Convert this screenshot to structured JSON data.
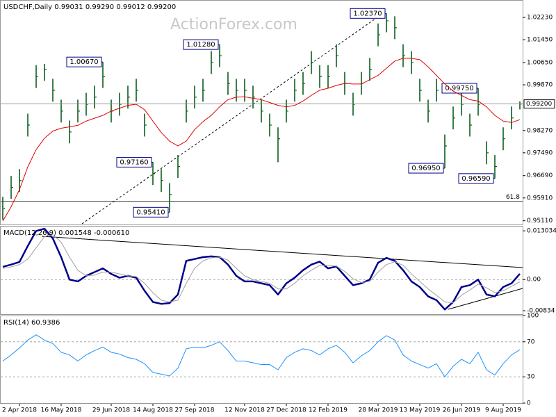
{
  "watermark": "ActionForex.com",
  "chart_data": [
    {
      "type": "ohlc",
      "title": "USDCHF,Daily 0.99031 0.99290 0.99012 0.99200",
      "categories": [
        null,
        null,
        "2 Apr 2018",
        null,
        null,
        null,
        null,
        "16 May 2018",
        null,
        null,
        null,
        null,
        null,
        "29 Jun 2018",
        null,
        null,
        null,
        null,
        "14 Aug 2018",
        null,
        null,
        null,
        null,
        "27 Sep 2018",
        null,
        null,
        null,
        null,
        null,
        "12 Nov 2018",
        null,
        null,
        null,
        null,
        "27 Dec 2018",
        null,
        null,
        null,
        null,
        "12 Feb 2019",
        null,
        null,
        null,
        null,
        null,
        "28 Mar 2019",
        null,
        null,
        null,
        null,
        "13 May 2019",
        null,
        null,
        null,
        null,
        "26 Jun 2019",
        null,
        null,
        null,
        null,
        "9 Aug 2019",
        null,
        null
      ],
      "color": "#0b5d1e",
      "high": [
        0.9595,
        0.9668,
        0.9692,
        0.9886,
        1.0056,
        1.006,
        1.0008,
        0.9935,
        0.9862,
        0.9935,
        0.9959,
        0.9984,
        1.0067,
        0.9935,
        0.9959,
        0.9984,
        1.0008,
        0.9886,
        0.9716,
        0.9692,
        0.9643,
        0.9741,
        0.9935,
        0.9984,
        1.0008,
        1.0105,
        1.0128,
        1.0032,
        1.0008,
        1.0008,
        0.9984,
        0.9935,
        0.9886,
        0.9838,
        0.9935,
        1.0008,
        1.0032,
        1.0105,
        1.0056,
        1.0056,
        1.0129,
        1.0032,
        0.9959,
        1.0032,
        1.0081,
        1.0202,
        1.0237,
        1.0227,
        1.0129,
        1.0105,
        1.0008,
        0.9935,
        1.0008,
        0.9813,
        0.9911,
        0.9959,
        0.9886,
        0.9975,
        0.9789,
        0.9741,
        0.9838,
        0.9911,
        0.9929
      ],
      "low": [
        0.9515,
        0.9588,
        0.9612,
        0.9806,
        0.9976,
        1.0001,
        0.9928,
        0.9855,
        0.9782,
        0.9855,
        0.9879,
        0.9904,
        0.9976,
        0.9855,
        0.9879,
        0.9904,
        0.9928,
        0.9806,
        0.9636,
        0.9612,
        0.9541,
        0.9661,
        0.9855,
        0.9904,
        0.9928,
        1.0025,
        1.0049,
        0.9952,
        0.9928,
        0.9928,
        0.9904,
        0.9855,
        0.9806,
        0.9716,
        0.9855,
        0.9928,
        0.9952,
        1.0025,
        0.9976,
        0.9976,
        1.0049,
        0.9952,
        0.9879,
        0.9952,
        1.0001,
        1.0122,
        1.0171,
        1.0147,
        1.0049,
        1.0025,
        0.9928,
        0.9855,
        0.9928,
        0.9695,
        0.9831,
        0.9879,
        0.9806,
        0.9879,
        0.9709,
        0.9659,
        0.9758,
        0.9831,
        0.9901
      ],
      "close": [
        0.9555,
        0.9628,
        0.9652,
        0.9846,
        1.0016,
        1.0041,
        0.9968,
        0.9895,
        0.9822,
        0.9895,
        0.9919,
        0.9944,
        1.0016,
        0.9895,
        0.9919,
        0.9944,
        0.9968,
        0.9846,
        0.9676,
        0.9652,
        0.9603,
        0.9701,
        0.9895,
        0.9944,
        0.9968,
        1.0065,
        1.0089,
        0.9992,
        0.9968,
        0.9968,
        0.9944,
        0.9895,
        0.9846,
        0.9798,
        0.9895,
        0.9968,
        0.9992,
        1.0065,
        1.0016,
        1.0016,
        1.0089,
        0.9992,
        0.9919,
        0.9992,
        1.0041,
        1.0162,
        1.0211,
        1.0187,
        1.0089,
        1.0065,
        0.9968,
        0.9895,
        0.9968,
        0.9773,
        0.9871,
        0.9919,
        0.9846,
        0.9919,
        0.9749,
        0.9701,
        0.9798,
        0.9871,
        0.992
      ],
      "series": [
        {
          "color": "#e00000",
          "values": [
            0.951,
            0.956,
            0.962,
            0.97,
            0.976,
            0.98,
            0.9825,
            0.9835,
            0.984,
            0.9845,
            0.986,
            0.987,
            0.988,
            0.9895,
            0.9905,
            0.9915,
            0.9919,
            0.99,
            0.986,
            0.982,
            0.979,
            0.9773,
            0.979,
            0.983,
            0.9858,
            0.988,
            0.991,
            0.9935,
            0.9944,
            0.9945,
            0.994,
            0.9935,
            0.9925,
            0.9915,
            0.991,
            0.9915,
            0.993,
            0.995,
            0.9968,
            0.9975,
            0.9985,
            0.9992,
            0.999,
            0.999,
            1.0005,
            1.002,
            1.0045,
            1.007,
            1.008,
            1.008,
            1.0075,
            1.005,
            1.002,
            0.999,
            0.9965,
            0.995,
            0.9935,
            0.993,
            0.991,
            0.988,
            0.986,
            0.9855,
            0.9865
          ]
        }
      ],
      "ylim": [
        0.9498,
        1.0284
      ],
      "yticks": [
        {
          "value": 0.9511,
          "label": "0.95110"
        },
        {
          "value": 0.9591,
          "label": "0.95910"
        },
        {
          "value": 0.9669,
          "label": "0.96690"
        },
        {
          "value": 0.9749,
          "label": "0.97490"
        },
        {
          "value": 0.9827,
          "label": "0.98270"
        },
        {
          "value": 0.9987,
          "label": "0.99870"
        },
        {
          "value": 1.0065,
          "label": "1.00650"
        },
        {
          "value": 1.0145,
          "label": "1.01450"
        },
        {
          "value": 1.0223,
          "label": "1.02230"
        }
      ],
      "current": {
        "value": 0.992,
        "label": "0.99200"
      },
      "levels": [
        {
          "value": 0.9579,
          "label": "61.8"
        }
      ],
      "annotations": [
        {
          "value": 1.0067,
          "label": "1.00670"
        },
        {
          "value": 1.0128,
          "label": "1.01280"
        },
        {
          "value": 0.9541,
          "label": "0.95410"
        },
        {
          "value": 0.9716,
          "label": "0.97160"
        },
        {
          "value": 1.0237,
          "label": "1.02370"
        },
        {
          "value": 0.9695,
          "label": "0.96950"
        },
        {
          "value": 0.9975,
          "label": "0.99750"
        },
        {
          "value": 0.9659,
          "label": "0.96590"
        }
      ]
    },
    {
      "type": "line",
      "title": "MACD(12,26,9) 0.001548 -0.000610",
      "series": [
        {
          "color": "#00008b",
          "line_width": 2.5,
          "values": [
            0.0034,
            0.004,
            0.0047,
            0.009,
            0.013,
            0.0136,
            0.011,
            0.006,
            0.0,
            -0.0005,
            0.001,
            0.002,
            0.003,
            0.0015,
            0.0005,
            0.001,
            0.0005,
            -0.003,
            -0.006,
            -0.0065,
            -0.0063,
            -0.004,
            0.005,
            0.0055,
            0.006,
            0.0062,
            0.006,
            0.004,
            0.001,
            -0.0005,
            -0.0005,
            -0.001,
            -0.0015,
            -0.004,
            -0.001,
            0.0005,
            0.0025,
            0.004,
            0.0048,
            0.003,
            0.0035,
            0.001,
            -0.0015,
            -0.001,
            0.0,
            0.0045,
            0.0058,
            0.005,
            0.0025,
            -0.0005,
            -0.002,
            -0.0045,
            -0.0055,
            -0.008,
            -0.006,
            -0.002,
            -0.0015,
            0.0,
            -0.004,
            -0.0045,
            -0.002,
            -0.001,
            0.001548
          ]
        },
        {
          "color": "#a0a0a0",
          "line_width": 1,
          "values": [
            0.003,
            0.0034,
            0.004,
            0.0055,
            0.0085,
            0.0115,
            0.012,
            0.01,
            0.006,
            0.0025,
            0.001,
            0.0012,
            0.002,
            0.002,
            0.0015,
            0.001,
            0.0008,
            -0.001,
            -0.0035,
            -0.0055,
            -0.006,
            -0.0055,
            -0.001,
            0.003,
            0.005,
            0.0058,
            0.006,
            0.0052,
            0.003,
            0.001,
            0.0,
            -0.0005,
            -0.001,
            -0.0025,
            -0.0025,
            -0.001,
            0.001,
            0.0025,
            0.0038,
            0.0038,
            0.0036,
            0.0022,
            0.0002,
            -0.0008,
            -0.0005,
            0.002,
            0.004,
            0.0048,
            0.0038,
            0.0015,
            -0.0005,
            -0.0025,
            -0.0042,
            -0.006,
            -0.0062,
            -0.0042,
            -0.0028,
            -0.0012,
            -0.0022,
            -0.0035,
            -0.003,
            -0.0018,
            -0.00061
          ]
        }
      ],
      "ylim": [
        -0.00925,
        0.01436
      ],
      "yticks": [
        0.013034,
        {
          "value": 0,
          "label": "0.00"
        },
        -0.00834
      ],
      "levels": [
        {
          "value": 0
        }
      ]
    },
    {
      "type": "line",
      "title": "RSI(14) 60.9386",
      "series": [
        {
          "color": "#1e90ff",
          "line_width": 1,
          "values": [
            48,
            55,
            63,
            72,
            78,
            72,
            68,
            58,
            55,
            48,
            55,
            60,
            64,
            58,
            56,
            52,
            50,
            45,
            35,
            33,
            31,
            40,
            62,
            64,
            63,
            66,
            70,
            60,
            48,
            48,
            46,
            44,
            44,
            38,
            52,
            58,
            62,
            60,
            55,
            62,
            66,
            58,
            46,
            54,
            60,
            70,
            77,
            72,
            55,
            48,
            44,
            40,
            45,
            30,
            42,
            50,
            45,
            58,
            38,
            32,
            45,
            55,
            60.9386
          ]
        }
      ],
      "ylim": [
        0,
        100
      ],
      "yticks": [
        0,
        30,
        70,
        100
      ],
      "levels": [
        {
          "value": 30
        },
        {
          "value": 70
        }
      ]
    }
  ]
}
